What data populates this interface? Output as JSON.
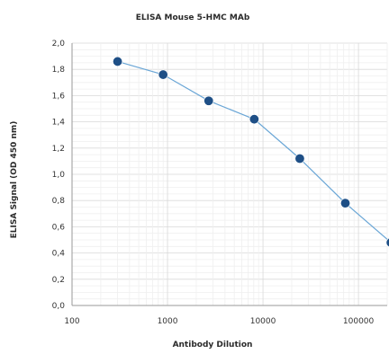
{
  "chart_data": {
    "type": "line",
    "title": "ELISA Mouse 5-HMC MAb",
    "xlabel": "Antibody Dilution",
    "ylabel": "ELISA Signal (OD 450 nm)",
    "x_scale": "log",
    "xlim": [
      100,
      200000
    ],
    "ylim": [
      0.0,
      2.0
    ],
    "x_ticks": [
      100,
      1000,
      10000,
      100000
    ],
    "x_tick_labels": [
      "100",
      "1000",
      "10000",
      "100000"
    ],
    "y_ticks": [
      0.0,
      0.2,
      0.4,
      0.6,
      0.8,
      1.0,
      1.2,
      1.4,
      1.6,
      1.8,
      2.0
    ],
    "y_tick_labels": [
      "0,0",
      "0,2",
      "0,4",
      "0,6",
      "0,8",
      "1,0",
      "1,2",
      "1,4",
      "1,6",
      "1,8",
      "2,0"
    ],
    "grid": true,
    "series": [
      {
        "name": "",
        "x": [
          300,
          900,
          2700,
          8100,
          24300,
          72900,
          218700
        ],
        "y": [
          1.86,
          1.76,
          1.56,
          1.42,
          1.12,
          0.78,
          0.48
        ]
      }
    ],
    "colors": {
      "marker": "#1e4f86",
      "line": "#6aa6d6",
      "grid": "#e3e3e3",
      "axis": "#9a9a9a"
    }
  }
}
